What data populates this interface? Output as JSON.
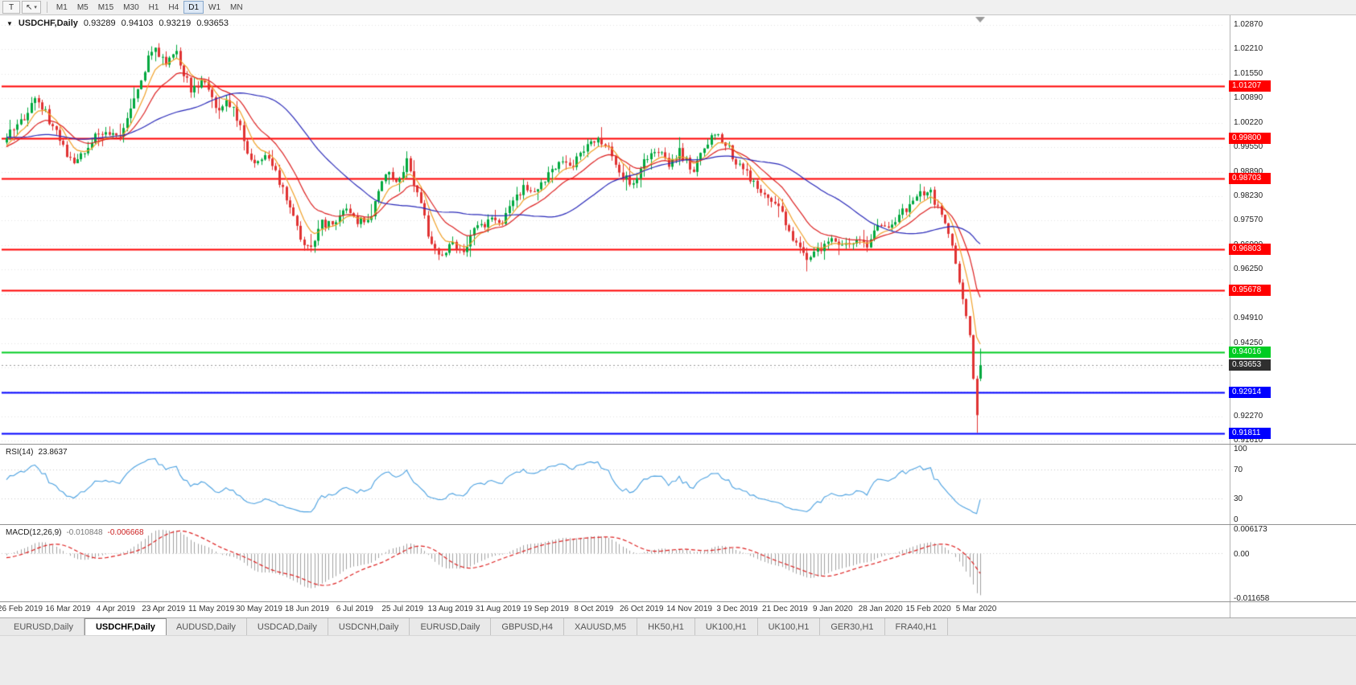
{
  "toolbar": {
    "text_tool": "T",
    "cursor_glyph": "↖",
    "caret": "▾",
    "timeframes": [
      "M1",
      "M5",
      "M15",
      "M30",
      "H1",
      "H4",
      "D1",
      "W1",
      "MN"
    ],
    "active_timeframe": "D1"
  },
  "chart": {
    "menu_arrow": "▼",
    "title_symbol": "USDCHF,Daily",
    "ohlc": {
      "open": "0.93289",
      "high": "0.94103",
      "low": "0.93219",
      "close": "0.93653"
    }
  },
  "indicators": {
    "rsi": {
      "name": "RSI(14)",
      "value": "23.8637",
      "period": 14,
      "levels": [
        "100",
        "70",
        "30",
        "0"
      ],
      "levels_numeric": [
        100,
        70,
        30,
        0
      ],
      "color": "#4aa0e0"
    },
    "macd": {
      "name": "MACD(12,26,9)",
      "value_main": "-0.010848",
      "value_signal": "-0.006668",
      "fast": 12,
      "slow": 26,
      "signal_period": 9,
      "axis": [
        "0.006173",
        "0.00",
        "-0.011658"
      ],
      "axis_numeric": [
        0.006173,
        0,
        -0.011658
      ],
      "hist_color": "#a0a0a0",
      "signal_color": "#dd2020"
    }
  },
  "chart_data": {
    "type": "candlestick",
    "symbol": "USDCHF",
    "timeframe": "Daily",
    "visible_candles": 276,
    "price_range": {
      "top": 1.0287,
      "bottom": 0.9161
    },
    "y_ticks": [
      "1.02870",
      "1.02210",
      "1.01550",
      "1.00890",
      "1.00220",
      "0.99550",
      "0.98890",
      "0.98230",
      "0.97570",
      "0.96900",
      "0.96250",
      "0.95570",
      "0.94910",
      "0.94250",
      "0.93590",
      "0.92930",
      "0.92270",
      "0.91610"
    ],
    "x_labels": [
      "26 Feb 2019",
      "16 Mar 2019",
      "4 Apr 2019",
      "23 Apr 2019",
      "11 May 2019",
      "30 May 2019",
      "18 Jun 2019",
      "6 Jul 2019",
      "25 Jul 2019",
      "13 Aug 2019",
      "31 Aug 2019",
      "19 Sep 2019",
      "8 Oct 2019",
      "26 Oct 2019",
      "14 Nov 2019",
      "3 Dec 2019",
      "21 Dec 2019",
      "9 Jan 2020",
      "28 Jan 2020",
      "15 Feb 2020",
      "5 Mar 2020"
    ],
    "hlines": [
      {
        "price": 1.01207,
        "label": "1.01207",
        "color": "#ff0000"
      },
      {
        "price": 0.998,
        "label": "0.99800",
        "color": "#ff0000"
      },
      {
        "price": 0.98703,
        "label": "0.98703",
        "color": "#ff0000"
      },
      {
        "price": 0.96803,
        "label": "0.96803",
        "color": "#ff0000"
      },
      {
        "price": 0.95678,
        "label": "0.95678",
        "color": "#ff0000"
      },
      {
        "price": 0.94016,
        "label": "0.94016",
        "color": "#00cc22"
      },
      {
        "price": 0.92914,
        "label": "0.92914",
        "color": "#0000ff"
      },
      {
        "price": 0.91811,
        "label": "0.91811",
        "color": "#0000ff"
      }
    ],
    "current_price": {
      "value": 0.93653,
      "label": "0.93653",
      "box_color": "#2f2f2f"
    },
    "last_candle": {
      "open": 0.93289,
      "high": 0.94103,
      "low": 0.93219,
      "close": 0.93653
    },
    "crash_low": 0.9182,
    "candle_colors": {
      "up": "#00a83e",
      "down": "#e03232"
    },
    "moving_averages": [
      {
        "method": "ema",
        "period": 7,
        "color": "#f0a028"
      },
      {
        "method": "ema",
        "period": 16,
        "color": "#dc2020"
      },
      {
        "method": "sma",
        "period": 40,
        "color": "#2828b8"
      }
    ],
    "trajectory_anchors": [
      [
        0,
        0.9985
      ],
      [
        5,
        1.004
      ],
      [
        8,
        1.0095
      ],
      [
        12,
        1.003
      ],
      [
        16,
        0.995
      ],
      [
        20,
        0.9915
      ],
      [
        24,
        0.998
      ],
      [
        28,
        1.0005
      ],
      [
        32,
        0.998
      ],
      [
        35,
        1.006
      ],
      [
        39,
        1.0165
      ],
      [
        41,
        1.0225
      ],
      [
        45,
        1.0185
      ],
      [
        48,
        1.0205
      ],
      [
        52,
        1.0115
      ],
      [
        56,
        1.013
      ],
      [
        59,
        1.0055
      ],
      [
        62,
        1.0085
      ],
      [
        66,
        1.002
      ],
      [
        69,
        0.9915
      ],
      [
        73,
        0.994
      ],
      [
        76,
        0.9885
      ],
      [
        80,
        0.98
      ],
      [
        83,
        0.9705
      ],
      [
        86,
        0.969
      ],
      [
        89,
        0.9755
      ],
      [
        92,
        0.974
      ],
      [
        96,
        0.979
      ],
      [
        99,
        0.9745
      ],
      [
        103,
        0.978
      ],
      [
        107,
        0.9885
      ],
      [
        110,
        0.986
      ],
      [
        113,
        0.9915
      ],
      [
        116,
        0.984
      ],
      [
        119,
        0.972
      ],
      [
        122,
        0.9655
      ],
      [
        125,
        0.9695
      ],
      [
        129,
        0.9665
      ],
      [
        132,
        0.9725
      ],
      [
        136,
        0.976
      ],
      [
        139,
        0.9745
      ],
      [
        142,
        0.979
      ],
      [
        146,
        0.985
      ],
      [
        149,
        0.9825
      ],
      [
        153,
        0.9885
      ],
      [
        157,
        0.9925
      ],
      [
        160,
        0.9905
      ],
      [
        163,
        0.995
      ],
      [
        167,
        0.9985
      ],
      [
        170,
        0.9945
      ],
      [
        174,
        0.9875
      ],
      [
        177,
        0.986
      ],
      [
        180,
        0.9915
      ],
      [
        184,
        0.995
      ],
      [
        187,
        0.9905
      ],
      [
        190,
        0.9945
      ],
      [
        194,
        0.989
      ],
      [
        197,
        0.9955
      ],
      [
        200,
        1.0
      ],
      [
        203,
        0.9965
      ],
      [
        207,
        0.9905
      ],
      [
        210,
        0.9875
      ],
      [
        213,
        0.9825
      ],
      [
        217,
        0.9805
      ],
      [
        220,
        0.9755
      ],
      [
        223,
        0.9685
      ],
      [
        227,
        0.9655
      ],
      [
        230,
        0.9685
      ],
      [
        233,
        0.9705
      ],
      [
        236,
        0.968
      ],
      [
        240,
        0.9715
      ],
      [
        243,
        0.969
      ],
      [
        246,
        0.9735
      ],
      [
        250,
        0.9755
      ],
      [
        253,
        0.9785
      ],
      [
        256,
        0.9805
      ],
      [
        260,
        0.9845
      ],
      [
        263,
        0.9795
      ],
      [
        265,
        0.975
      ],
      [
        267,
        0.9685
      ],
      [
        269,
        0.9585
      ],
      [
        270,
        0.9545
      ],
      [
        271,
        0.9495
      ],
      [
        272,
        0.9445
      ],
      [
        273,
        0.933
      ],
      [
        274,
        0.923
      ],
      [
        275,
        0.93653
      ]
    ]
  },
  "tabs": {
    "items": [
      {
        "label": "EURUSD,Daily",
        "active": false
      },
      {
        "label": "USDCHF,Daily",
        "active": true
      },
      {
        "label": "AUDUSD,Daily",
        "active": false
      },
      {
        "label": "USDCAD,Daily",
        "active": false
      },
      {
        "label": "USDCNH,Daily",
        "active": false
      },
      {
        "label": "EURUSD,Daily",
        "active": false
      },
      {
        "label": "GBPUSD,H4",
        "active": false
      },
      {
        "label": "XAUUSD,M5",
        "active": false
      },
      {
        "label": "HK50,H1",
        "active": false
      },
      {
        "label": "UK100,H1",
        "active": false
      },
      {
        "label": "UK100,H1",
        "active": false
      },
      {
        "label": "GER30,H1",
        "active": false
      },
      {
        "label": "FRA40,H1",
        "active": false
      }
    ]
  }
}
